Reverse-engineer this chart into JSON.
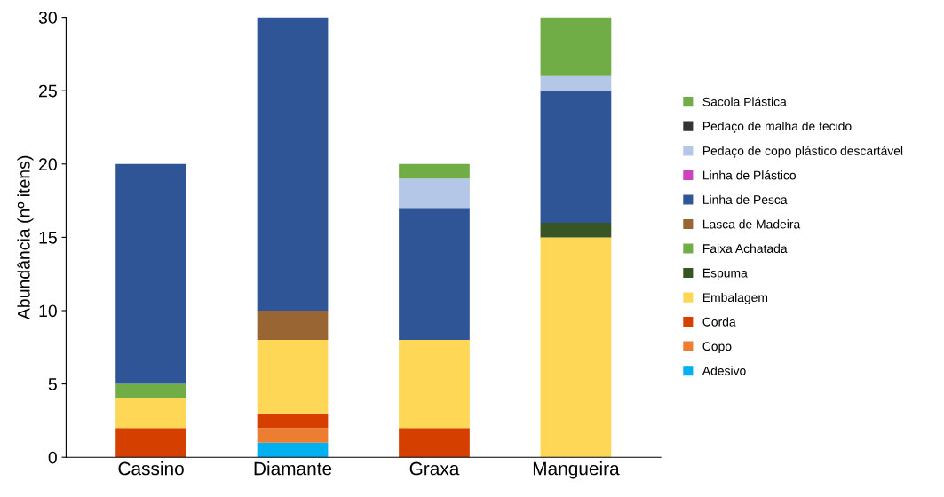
{
  "chart_data": {
    "type": "bar",
    "stacked": true,
    "ylabel": "Abundância (nº itens)",
    "categories": [
      "Cassino",
      "Diamante",
      "Graxa",
      "Mangueira"
    ],
    "ylim": [
      0,
      30
    ],
    "yticks": [
      0,
      5,
      10,
      15,
      20,
      25,
      30
    ],
    "grid": false,
    "legend": "right",
    "series": [
      {
        "name": "Adesivo",
        "color": "#00b0f0",
        "values": [
          0,
          1,
          0,
          0
        ]
      },
      {
        "name": "Copo",
        "color": "#ed7d31",
        "values": [
          0,
          1,
          0,
          0
        ]
      },
      {
        "name": "Corda",
        "color": "#d54000",
        "values": [
          2,
          1,
          2,
          0
        ]
      },
      {
        "name": "Embalagem",
        "color": "#ffd757",
        "values": [
          2,
          5,
          6,
          15
        ]
      },
      {
        "name": "Espuma",
        "color": "#375623",
        "values": [
          0,
          0,
          0,
          1
        ]
      },
      {
        "name": "Faixa Achatada",
        "color": "#70ad47",
        "values": [
          1,
          0,
          0,
          0
        ]
      },
      {
        "name": "Lasca de Madeira",
        "color": "#996633",
        "values": [
          0,
          2,
          0,
          0
        ]
      },
      {
        "name": "Linha de Pesca",
        "color": "#2f5597",
        "values": [
          15,
          20,
          9,
          9
        ]
      },
      {
        "name": "Linha de Plástico",
        "color": "#cc44bb",
        "values": [
          0,
          0,
          0,
          0
        ]
      },
      {
        "name": "Pedaço de copo plástico descartável",
        "color": "#b4c7e7",
        "values": [
          0,
          0,
          2,
          1
        ]
      },
      {
        "name": "Pedaço de malha de tecido",
        "color": "#333333",
        "values": [
          0,
          0,
          0,
          0
        ]
      },
      {
        "name": "Sacola Plástica",
        "color": "#70ad47",
        "values": [
          0,
          0,
          1,
          4
        ]
      }
    ]
  }
}
